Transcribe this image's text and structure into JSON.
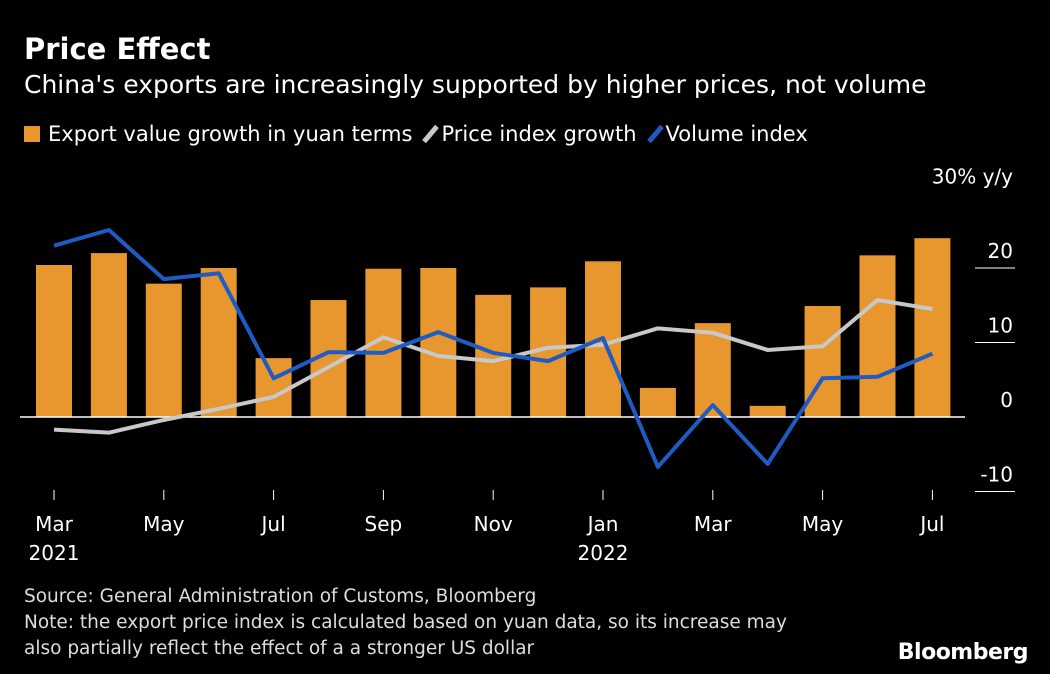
{
  "title": "Price Effect",
  "subtitle": "China's exports are increasingly supported by higher prices, not volume",
  "footer": {
    "source": "Source: General Administration of Customs, Bloomberg",
    "note1": "Note: the export price index is calculated based on yuan data, so its increase may",
    "note2": "also partially reflect the effect of a a stronger US dollar"
  },
  "brand": "Bloomberg",
  "colors": {
    "bar": "#e8962e",
    "price": "#c8c8c8",
    "volume": "#1f5bc4"
  },
  "chart_data": {
    "type": "bar+line",
    "unit_label": "30% y/y",
    "ylim": [
      -12,
      30
    ],
    "yticks": [
      {
        "value": 30,
        "label": "30% y/y"
      },
      {
        "value": 20,
        "label": "20"
      },
      {
        "value": 10,
        "label": "10"
      },
      {
        "value": 0,
        "label": "0"
      },
      {
        "value": -10,
        "label": "-10"
      }
    ],
    "categories": [
      "Mar 2021",
      "Apr 2021",
      "May 2021",
      "Jun 2021",
      "Jul 2021",
      "Aug 2021",
      "Sep 2021",
      "Oct 2021",
      "Nov 2021",
      "Dec 2021",
      "Jan 2022",
      "Feb 2022",
      "Mar 2022",
      "Apr 2022",
      "May 2022",
      "Jun 2022",
      "Jul 2022"
    ],
    "xticks": [
      {
        "index": 0,
        "label": "Mar",
        "year": "2021"
      },
      {
        "index": 2,
        "label": "May",
        "year": ""
      },
      {
        "index": 4,
        "label": "Jul",
        "year": ""
      },
      {
        "index": 6,
        "label": "Sep",
        "year": ""
      },
      {
        "index": 8,
        "label": "Nov",
        "year": ""
      },
      {
        "index": 10,
        "label": "Jan",
        "year": "2022"
      },
      {
        "index": 12,
        "label": "Mar",
        "year": ""
      },
      {
        "index": 14,
        "label": "May",
        "year": ""
      },
      {
        "index": 16,
        "label": "Jul",
        "year": ""
      }
    ],
    "series": [
      {
        "name": "Export value growth in yuan terms",
        "type": "bar",
        "values": [
          20.4,
          22.0,
          17.9,
          20.0,
          7.9,
          15.7,
          19.9,
          20.0,
          16.4,
          17.4,
          20.9,
          3.9,
          12.6,
          1.5,
          14.9,
          21.7,
          24.0
        ]
      },
      {
        "name": "Price index growth",
        "type": "line",
        "values": [
          -1.7,
          -2.1,
          -0.4,
          1.1,
          2.7,
          6.7,
          10.7,
          8.2,
          7.5,
          9.3,
          9.7,
          11.9,
          11.3,
          9.0,
          9.5,
          15.7,
          14.5
        ]
      },
      {
        "name": "Volume index",
        "type": "line",
        "values": [
          23.0,
          25.1,
          18.5,
          19.3,
          5.2,
          8.7,
          8.6,
          11.4,
          8.6,
          7.5,
          10.6,
          -6.7,
          1.6,
          -6.3,
          5.2,
          5.4,
          8.5
        ]
      }
    ]
  }
}
